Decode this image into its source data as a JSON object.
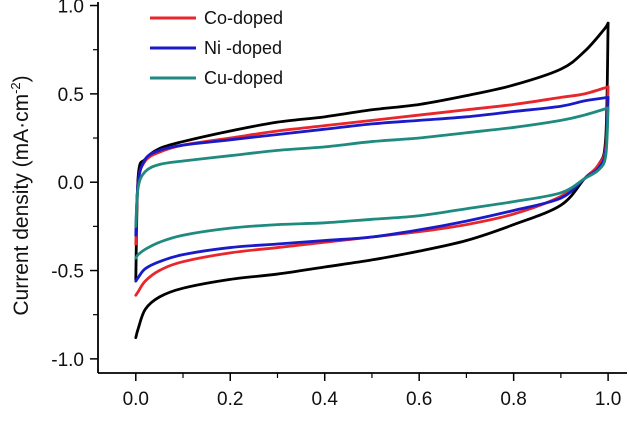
{
  "chart_data": {
    "type": "line",
    "title": "",
    "xlabel": "",
    "ylabel": {
      "main": "Current density (mA·cm",
      "sup": "-2",
      "close": ")"
    },
    "xlim": [
      -0.08,
      1.04
    ],
    "ylim": [
      -1.08,
      1.02
    ],
    "x_ticks": [
      {
        "value": 0.0,
        "label": "0.0"
      },
      {
        "value": 0.2,
        "label": "0.2"
      },
      {
        "value": 0.4,
        "label": "0.4"
      },
      {
        "value": 0.6,
        "label": "0.6"
      },
      {
        "value": 0.8,
        "label": "0.8"
      },
      {
        "value": 1.0,
        "label": "1.0"
      }
    ],
    "y_ticks": [
      {
        "value": 1.0,
        "label": "1.0"
      },
      {
        "value": 0.5,
        "label": "0.5"
      },
      {
        "value": 0.0,
        "label": "0.0"
      },
      {
        "value": -0.5,
        "label": "-0.5"
      },
      {
        "value": -1.0,
        "label": "-1.0"
      }
    ],
    "grid": false,
    "legend_position": "top-left",
    "series": [
      {
        "name": "",
        "legend_label": "",
        "color": "#000000",
        "upper": [
          [
            0.0,
            -0.55
          ],
          [
            0.005,
            0.03
          ],
          [
            0.02,
            0.13
          ],
          [
            0.05,
            0.19
          ],
          [
            0.1,
            0.23
          ],
          [
            0.2,
            0.29
          ],
          [
            0.3,
            0.34
          ],
          [
            0.4,
            0.37
          ],
          [
            0.5,
            0.41
          ],
          [
            0.6,
            0.44
          ],
          [
            0.7,
            0.49
          ],
          [
            0.8,
            0.55
          ],
          [
            0.9,
            0.64
          ],
          [
            0.95,
            0.74
          ],
          [
            0.99,
            0.86
          ],
          [
            1.0,
            0.9
          ]
        ],
        "lower": [
          [
            1.0,
            0.9
          ],
          [
            0.995,
            0.25
          ],
          [
            0.98,
            0.1
          ],
          [
            0.95,
            0.02
          ],
          [
            0.9,
            -0.13
          ],
          [
            0.8,
            -0.24
          ],
          [
            0.7,
            -0.33
          ],
          [
            0.6,
            -0.39
          ],
          [
            0.5,
            -0.44
          ],
          [
            0.4,
            -0.48
          ],
          [
            0.3,
            -0.52
          ],
          [
            0.2,
            -0.55
          ],
          [
            0.1,
            -0.6
          ],
          [
            0.05,
            -0.65
          ],
          [
            0.02,
            -0.72
          ],
          [
            0.005,
            -0.83
          ],
          [
            0.0,
            -0.88
          ]
        ]
      },
      {
        "name": "Co-doped",
        "legend_label": "Co-doped",
        "color": "#e8262b",
        "upper": [
          [
            0.0,
            -0.35
          ],
          [
            0.005,
            0.0
          ],
          [
            0.02,
            0.12
          ],
          [
            0.05,
            0.17
          ],
          [
            0.1,
            0.21
          ],
          [
            0.2,
            0.25
          ],
          [
            0.3,
            0.29
          ],
          [
            0.4,
            0.32
          ],
          [
            0.5,
            0.35
          ],
          [
            0.6,
            0.38
          ],
          [
            0.7,
            0.41
          ],
          [
            0.8,
            0.44
          ],
          [
            0.9,
            0.48
          ],
          [
            0.95,
            0.5
          ],
          [
            1.0,
            0.54
          ]
        ],
        "lower": [
          [
            1.0,
            0.54
          ],
          [
            0.995,
            0.2
          ],
          [
            0.98,
            0.1
          ],
          [
            0.95,
            0.02
          ],
          [
            0.9,
            -0.08
          ],
          [
            0.8,
            -0.18
          ],
          [
            0.7,
            -0.24
          ],
          [
            0.6,
            -0.28
          ],
          [
            0.5,
            -0.31
          ],
          [
            0.4,
            -0.34
          ],
          [
            0.3,
            -0.37
          ],
          [
            0.2,
            -0.4
          ],
          [
            0.1,
            -0.45
          ],
          [
            0.05,
            -0.5
          ],
          [
            0.02,
            -0.56
          ],
          [
            0.005,
            -0.62
          ],
          [
            0.0,
            -0.64
          ]
        ]
      },
      {
        "name": "Ni -doped",
        "legend_label": "Ni -doped",
        "color": "#1a1ac8",
        "upper": [
          [
            0.0,
            -0.3
          ],
          [
            0.005,
            0.0
          ],
          [
            0.02,
            0.13
          ],
          [
            0.05,
            0.18
          ],
          [
            0.1,
            0.21
          ],
          [
            0.2,
            0.24
          ],
          [
            0.3,
            0.27
          ],
          [
            0.4,
            0.3
          ],
          [
            0.5,
            0.33
          ],
          [
            0.6,
            0.35
          ],
          [
            0.7,
            0.37
          ],
          [
            0.8,
            0.4
          ],
          [
            0.9,
            0.43
          ],
          [
            0.95,
            0.46
          ],
          [
            1.0,
            0.48
          ]
        ],
        "lower": [
          [
            1.0,
            0.48
          ],
          [
            0.995,
            0.18
          ],
          [
            0.98,
            0.08
          ],
          [
            0.95,
            0.02
          ],
          [
            0.9,
            -0.09
          ],
          [
            0.8,
            -0.16
          ],
          [
            0.7,
            -0.22
          ],
          [
            0.6,
            -0.27
          ],
          [
            0.5,
            -0.31
          ],
          [
            0.4,
            -0.33
          ],
          [
            0.3,
            -0.35
          ],
          [
            0.2,
            -0.37
          ],
          [
            0.1,
            -0.41
          ],
          [
            0.05,
            -0.45
          ],
          [
            0.02,
            -0.49
          ],
          [
            0.005,
            -0.54
          ],
          [
            0.0,
            -0.56
          ]
        ]
      },
      {
        "name": "Cu-doped",
        "legend_label": "Cu-doped",
        "color": "#1f8a80",
        "upper": [
          [
            0.0,
            -0.25
          ],
          [
            0.005,
            -0.03
          ],
          [
            0.02,
            0.06
          ],
          [
            0.05,
            0.1
          ],
          [
            0.1,
            0.12
          ],
          [
            0.2,
            0.15
          ],
          [
            0.3,
            0.18
          ],
          [
            0.4,
            0.2
          ],
          [
            0.5,
            0.23
          ],
          [
            0.6,
            0.25
          ],
          [
            0.7,
            0.28
          ],
          [
            0.8,
            0.31
          ],
          [
            0.9,
            0.35
          ],
          [
            0.95,
            0.38
          ],
          [
            1.0,
            0.42
          ]
        ],
        "lower": [
          [
            1.0,
            0.42
          ],
          [
            0.995,
            0.15
          ],
          [
            0.98,
            0.07
          ],
          [
            0.95,
            0.02
          ],
          [
            0.9,
            -0.06
          ],
          [
            0.8,
            -0.11
          ],
          [
            0.7,
            -0.15
          ],
          [
            0.6,
            -0.19
          ],
          [
            0.5,
            -0.21
          ],
          [
            0.4,
            -0.23
          ],
          [
            0.3,
            -0.24
          ],
          [
            0.2,
            -0.26
          ],
          [
            0.1,
            -0.3
          ],
          [
            0.05,
            -0.34
          ],
          [
            0.02,
            -0.38
          ],
          [
            0.005,
            -0.41
          ],
          [
            0.0,
            -0.43
          ]
        ]
      }
    ]
  }
}
